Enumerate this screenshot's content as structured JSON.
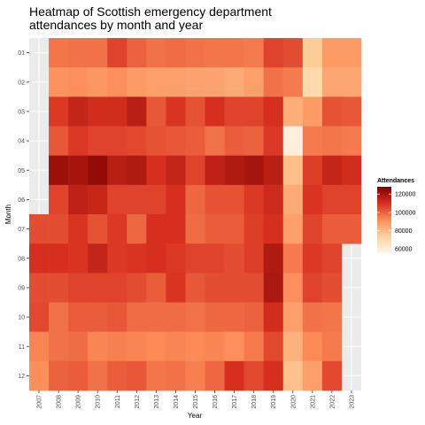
{
  "chart_data": {
    "type": "heatmap",
    "title": "Heatmap of Scottish emergency department attendances by month and year",
    "title_lines": [
      "Heatmap of Scottish emergency department",
      "attendances by month and year"
    ],
    "xlabel": "Year",
    "ylabel": "Month",
    "x_categories": [
      "2007",
      "2008",
      "2009",
      "2010",
      "2011",
      "2012",
      "2013",
      "2014",
      "2015",
      "2016",
      "2017",
      "2018",
      "2019",
      "2020",
      "2021",
      "2022",
      "2023"
    ],
    "y_categories": [
      "01",
      "02",
      "03",
      "04",
      "05",
      "06",
      "07",
      "08",
      "09",
      "10",
      "11",
      "12"
    ],
    "legend": {
      "title": "Attendances",
      "position": "right",
      "breaks": [
        60000,
        80000,
        100000,
        120000
      ],
      "break_labels": [
        "60000",
        "80000",
        "100000",
        "120000"
      ],
      "range": [
        55000,
        128000
      ],
      "colors": [
        "#fff5eb",
        "#fdd49e",
        "#fc8d59",
        "#d7301f",
        "#7f0000"
      ]
    },
    "grid": true,
    "values": [
      [
        null,
        96000,
        97000,
        97000,
        106000,
        100000,
        97000,
        98000,
        97000,
        96000,
        96000,
        95000,
        106000,
        104000,
        75000,
        88000,
        88000
      ],
      [
        null,
        90000,
        91000,
        89000,
        91000,
        88000,
        87000,
        87000,
        86000,
        86000,
        84000,
        87000,
        97000,
        95000,
        70000,
        85000,
        85000
      ],
      [
        null,
        108000,
        114000,
        111000,
        111000,
        116000,
        102000,
        109000,
        103000,
        110000,
        106000,
        106000,
        110000,
        83000,
        88000,
        103000,
        102000
      ],
      [
        null,
        102000,
        108000,
        106000,
        106000,
        105000,
        103000,
        102000,
        101000,
        97000,
        101000,
        100000,
        108000,
        58000,
        95000,
        96000,
        95000
      ],
      [
        null,
        122000,
        120000,
        124000,
        116000,
        118000,
        110000,
        114000,
        106000,
        115000,
        118000,
        120000,
        116000,
        79000,
        107000,
        114000,
        111000
      ],
      [
        null,
        106000,
        115000,
        113000,
        106000,
        106000,
        106000,
        110000,
        99000,
        103000,
        103000,
        108000,
        112000,
        84000,
        109000,
        106000,
        106000
      ],
      [
        104000,
        104000,
        109000,
        103000,
        108000,
        99000,
        110000,
        110000,
        98000,
        101000,
        101000,
        107000,
        110000,
        87000,
        106000,
        101000,
        101000
      ],
      [
        110000,
        110000,
        109000,
        114000,
        108000,
        109000,
        110000,
        108000,
        106000,
        106000,
        104000,
        107000,
        118000,
        95000,
        108000,
        106000,
        null
      ],
      [
        104000,
        104000,
        106000,
        106000,
        106000,
        104000,
        101000,
        109000,
        102000,
        104000,
        104000,
        104000,
        119000,
        91000,
        106000,
        104000,
        null
      ],
      [
        105000,
        97000,
        101000,
        101000,
        102000,
        98000,
        98000,
        98000,
        97000,
        99000,
        99000,
        100000,
        111000,
        87000,
        97000,
        96000,
        null
      ],
      [
        93000,
        97000,
        98000,
        93000,
        94000,
        93000,
        92000,
        93000,
        92000,
        93000,
        91000,
        95000,
        105000,
        82000,
        92000,
        95000,
        null
      ],
      [
        91000,
        100000,
        101000,
        97000,
        101000,
        102000,
        96000,
        97000,
        94000,
        99000,
        110000,
        105000,
        110000,
        78000,
        87000,
        105000,
        null
      ]
    ]
  }
}
